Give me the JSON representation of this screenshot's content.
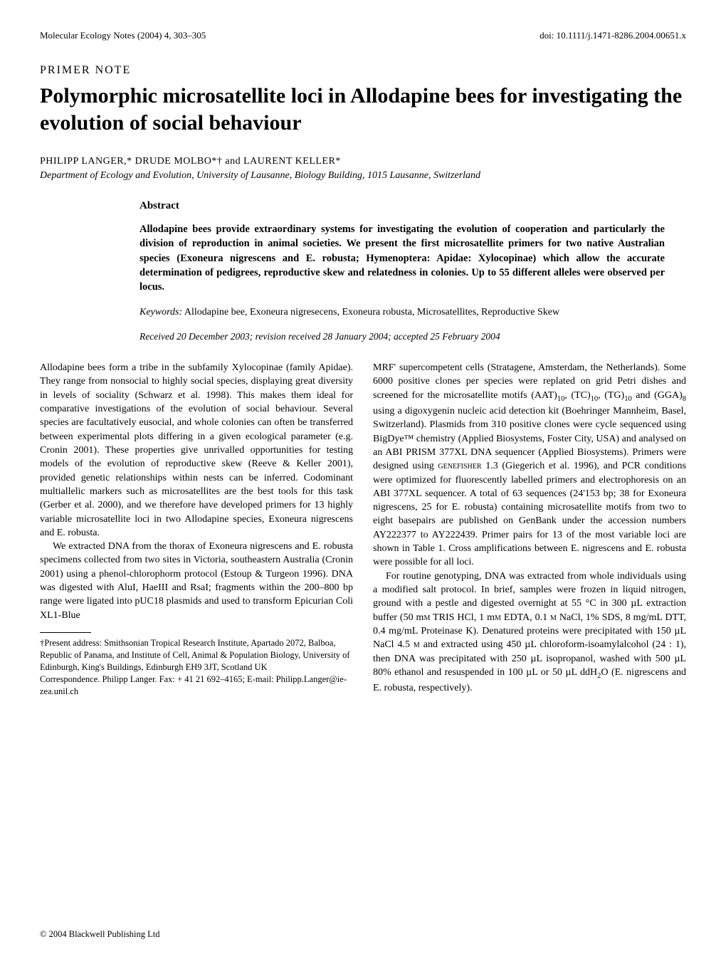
{
  "header": {
    "journal": "Molecular Ecology Notes (2004) 4, 303–305",
    "doi": "doi: 10.1111/j.1471-8286.2004.00651.x"
  },
  "article_type": "PRIMER NOTE",
  "title": "Polymorphic microsatellite loci in Allodapine bees for investigating the evolution of social behaviour",
  "authors": "PHILIPP LANGER,* DRUDE MOLBO*† and LAURENT KELLER*",
  "affiliation": "Department of Ecology and Evolution, University of Lausanne, Biology Building, 1015 Lausanne, Switzerland",
  "abstract": {
    "heading": "Abstract",
    "text": "Allodapine bees provide extraordinary systems for investigating the evolution of cooperation and particularly the division of reproduction in animal societies. We present the first microsatellite primers for two native Australian species (Exoneura nigrescens and E. robusta; Hymenoptera: Apidae: Xylocopinae) which allow the accurate determination of pedigrees, reproductive skew and relatedness in colonies. Up to 55 different alleles were observed per locus.",
    "keywords_label": "Keywords:",
    "keywords_text": " Allodapine bee, Exoneura nigresecens, Exoneura robusta, Microsatellites, Reproductive Skew",
    "received": "Received 20 December 2003; revision received 28 January 2004; accepted 25 February 2004"
  },
  "body": {
    "left": {
      "p1": "Allodapine bees form a tribe in the subfamily Xylocopinae (family Apidae). They range from nonsocial to highly social species, displaying great diversity in levels of sociality (Schwarz et al. 1998). This makes them ideal for comparative investigations of the evolution of social behaviour. Several species are facultatively eusocial, and whole colonies can often be transferred between experimental plots differing in a given ecological parameter (e.g. Cronin 2001). These properties give unrivalled opportunities for testing models of the evolution of reproductive skew (Reeve & Keller 2001), provided genetic relationships within nests can be inferred. Codominant multiallelic markers such as microsatellites are the best tools for this task (Gerber et al. 2000), and we therefore have developed primers for 13 highly variable microsatellite loci in two Allodapine species, Exoneura nigrescens and E. robusta.",
      "p2": "We extracted DNA from the thorax of Exoneura nigrescens and E. robusta specimens collected from two sites in Victoria, southeastern Australia (Cronin 2001) using a phenol-chlorophorm protocol (Estoup & Turgeon 1996). DNA was digested with AluI, HaeIII and RsaI; fragments within the 200–800 bp range were ligated into pUC18 plasmids and used to transform Epicurian Coli XL1-Blue",
      "footnote1": "†Present address: Smithsonian Tropical Research Institute, Apartado 2072, Balboa, Republic of Panama, and Institute of Cell, Animal & Population Biology, University of Edinburgh, King's Buildings, Edinburgh EH9 3JT, Scotland UK",
      "footnote2": "Correspondence. Philipp Langer. Fax: + 41 21 692–4165; E-mail: Philipp.Langer@ie-zea.unil.ch"
    },
    "right": {
      "p1a": "MRF' supercompetent cells (Stratagene, Amsterdam, the Netherlands). Some 6000 positive clones per species were replated on grid Petri dishes and screened for the microsatellite motifs (AAT)",
      "p1b": ", (TC)",
      "p1c": ", (TG)",
      "p1d": " and (GGA)",
      "p1e": " using a digoxygenin nucleic acid detection kit (Boehringer Mannheim, Basel, Switzerland). Plasmids from 310 positive clones were cycle sequenced using BigDye™ chemistry (Applied Biosystems, Foster City, USA) and analysed on an ABI PRISM 377XL DNA sequencer (Applied Biosystems). Primers were designed using ",
      "p1f": " 1.3 (Giegerich et al. 1996), and PCR conditions were optimized for fluorescently labelled primers and electrophoresis on an ABI 377XL sequencer. A total of 63 sequences (24'153 bp; 38 for Exoneura nigrescens, 25 for E. robusta) containing microsatellite motifs from two to eight basepairs are published on GenBank under the accession numbers AY222377 to AY222439. Primer pairs for 13 of the most variable loci are shown in Table 1. Cross amplifications between E. nigrescens and E. robusta were possible for all loci.",
      "genefisher": "genefisher",
      "sub10": "10",
      "sub8": "8",
      "p2a": "For routine genotyping, DNA was extracted from whole individuals using a modified salt protocol. In brief, samples were frozen in liquid nitrogen, ground with a pestle and digested overnight at 55 °C in 300 µL extraction buffer (50 m",
      "p2b": " TRIS HCl, 1 m",
      "p2c": " EDTA, 0.1 ",
      "p2d": " NaCl, 1% SDS, 8 mg/mL DTT, 0.4 mg/mL Proteinase K). Denatured proteins were precipitated with 150 µL NaCl 4.5 ",
      "p2e": " and extracted using 450 µL chloroform-isoamylalcohol (24 : 1), then DNA was precipitated with 250 µL isopropanol, washed with 500 µL 80% ethanol and resuspended in 100 µL or 50 µL ddH",
      "p2f": "O (E. nigrescens and E. robusta, respectively).",
      "mM": "m",
      "M": "m",
      "sub2": "2"
    }
  },
  "copyright": "© 2004 Blackwell Publishing Ltd"
}
